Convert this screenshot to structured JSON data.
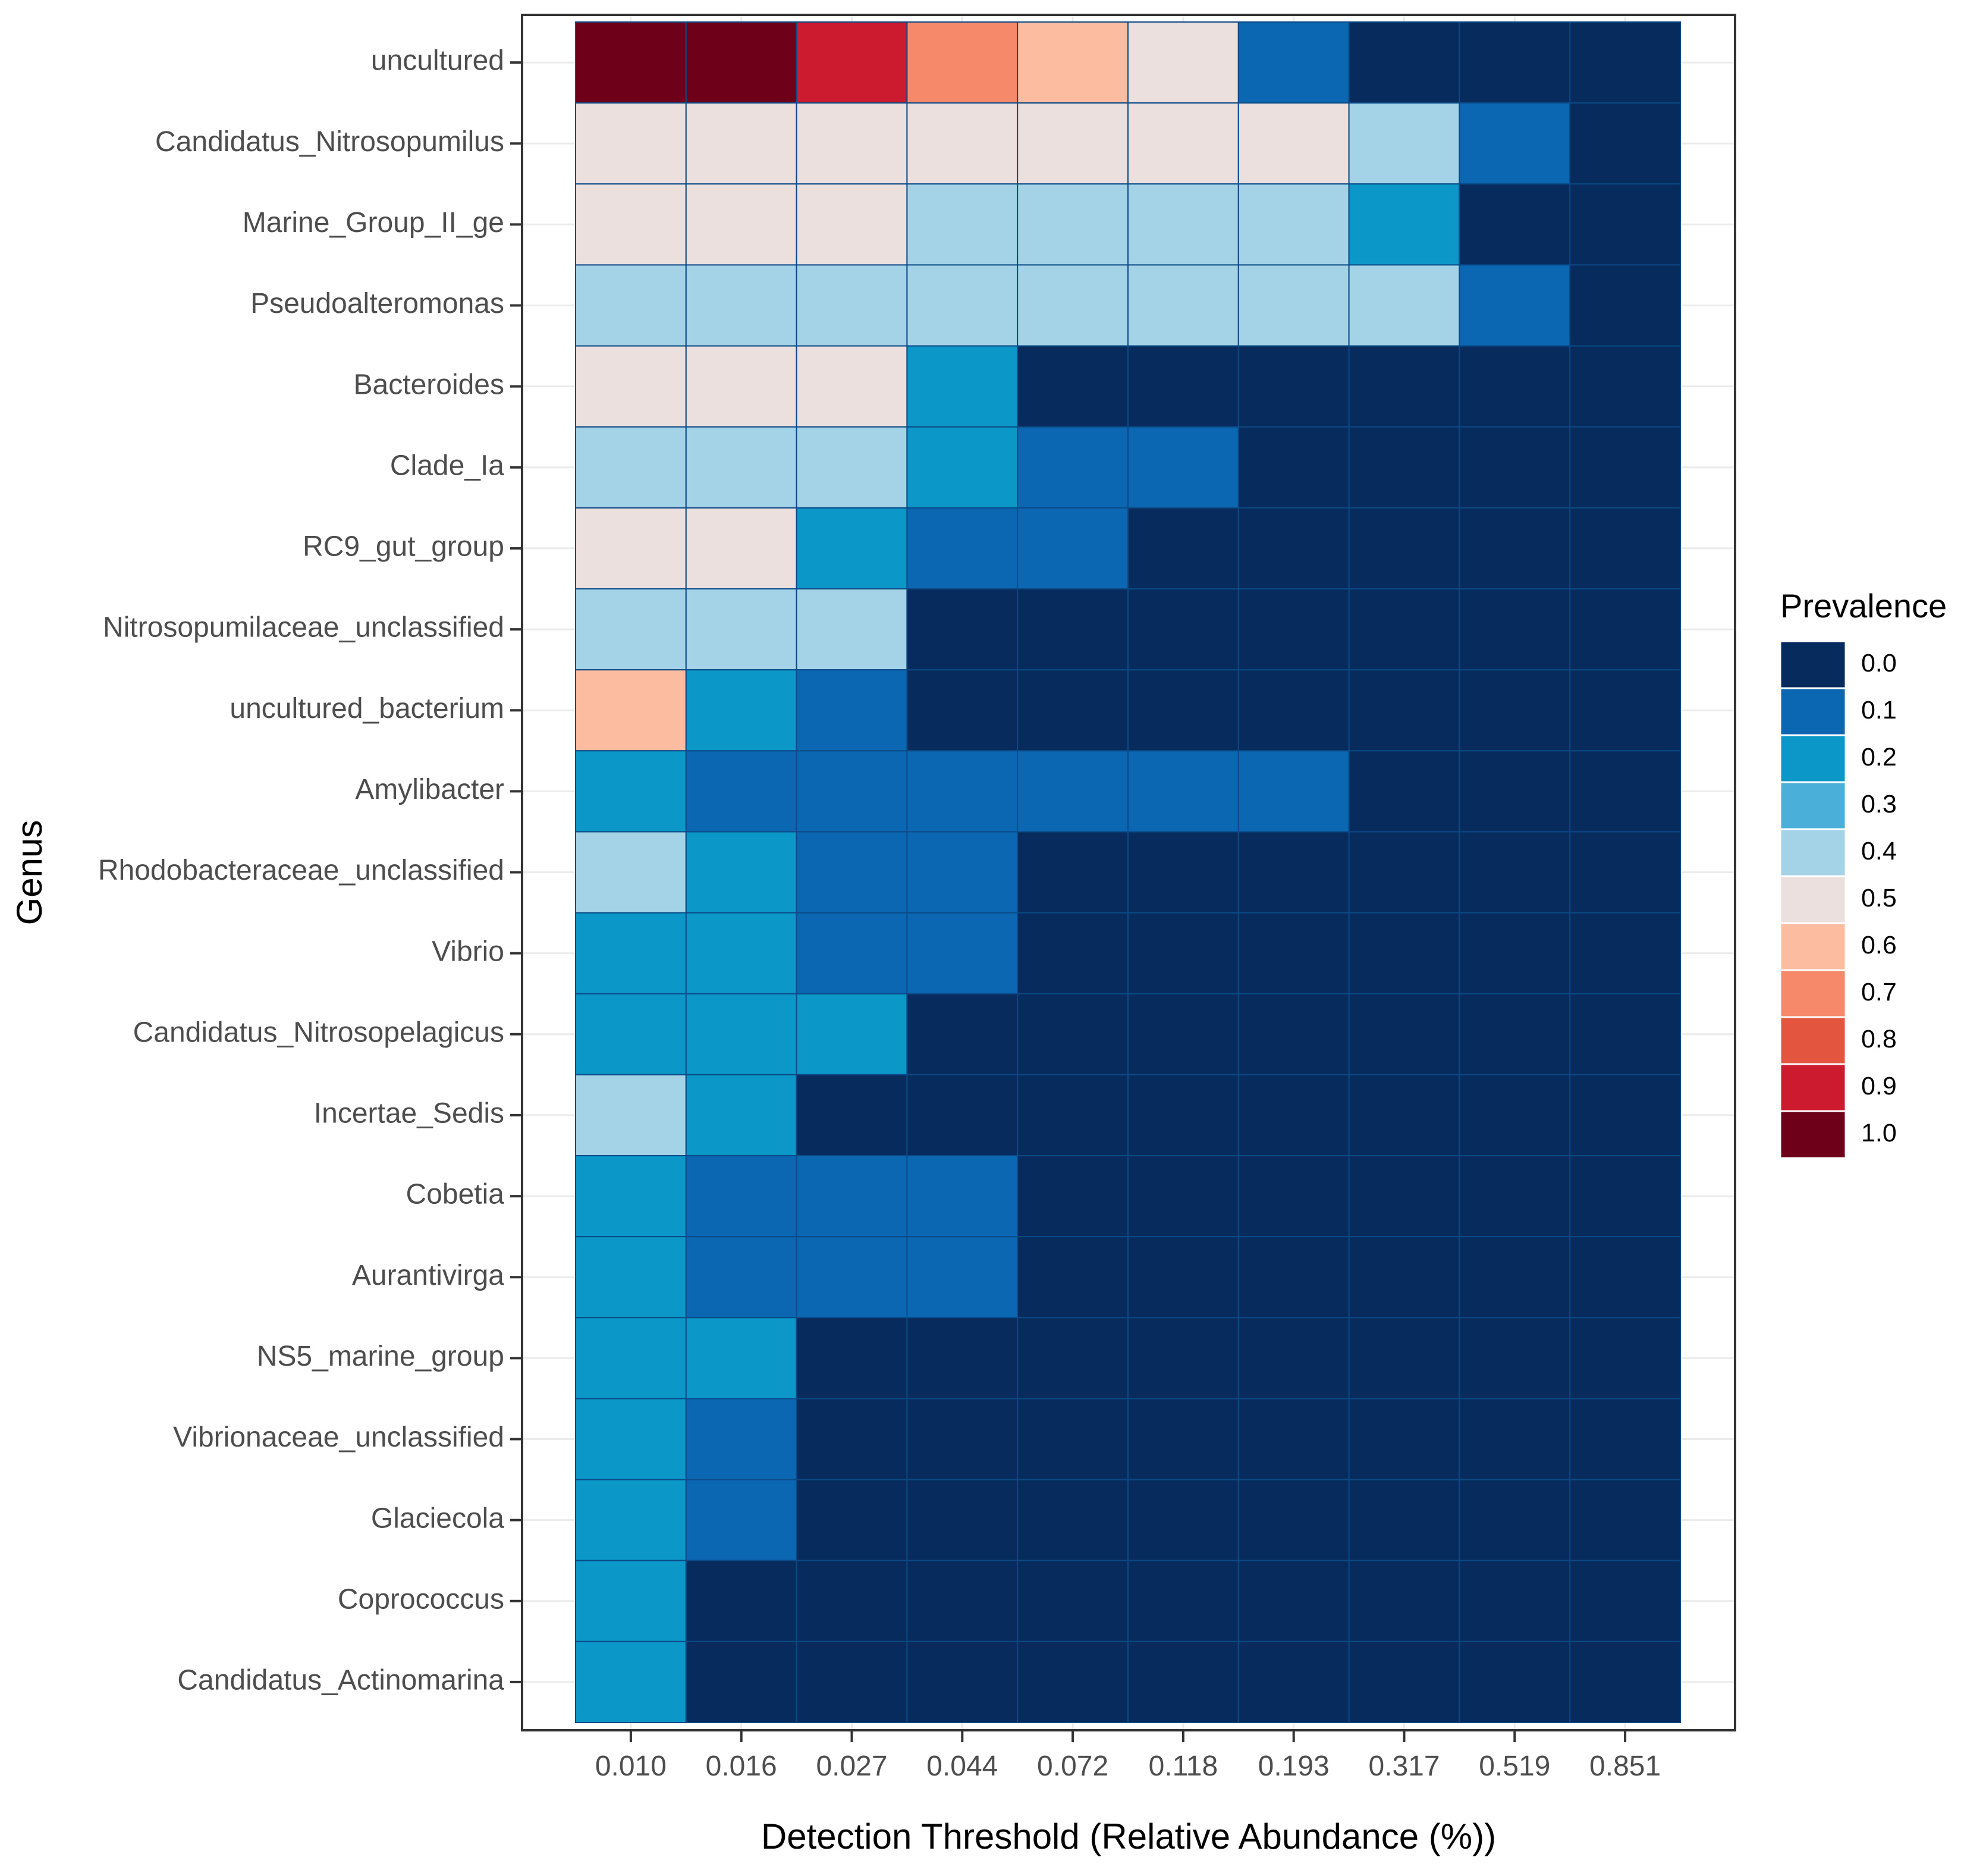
{
  "colors": {
    "background": "#ffffff",
    "panel_border": "#333333",
    "grid": "#ebebeb",
    "tick_text": "#4d4d4d",
    "axis_text": "#000000",
    "cell_border": "#0b4a86",
    "palette": {
      "0.0": "#062b5c",
      "0.1": "#0b67b2",
      "0.2": "#0b98c8",
      "0.3": "#4ab0d9",
      "0.4": "#a4d3e8",
      "0.5": "#ebe0de",
      "0.6": "#fbbca0",
      "0.7": "#f6896a",
      "0.8": "#e3553f",
      "0.9": "#cc1a2f",
      "1.0": "#6f0019"
    }
  },
  "chart_data": {
    "type": "heatmap",
    "title": "",
    "xlabel": "Detection Threshold (Relative Abundance (%))",
    "ylabel": "Genus",
    "x_categories": [
      "0.010",
      "0.016",
      "0.027",
      "0.044",
      "0.072",
      "0.118",
      "0.193",
      "0.317",
      "0.519",
      "0.851"
    ],
    "y_categories": [
      "uncultured",
      "Candidatus_Nitrosopumilus",
      "Marine_Group_II_ge",
      "Pseudoalteromonas",
      "Bacteroides",
      "Clade_Ia",
      "RC9_gut_group",
      "Nitrosopumilaceae_unclassified",
      "uncultured_bacterium",
      "Amylibacter",
      "Rhodobacteraceae_unclassified",
      "Vibrio",
      "Candidatus_Nitrosopelagicus",
      "Incertae_Sedis",
      "Cobetia",
      "Aurantivirga",
      "NS5_marine_group",
      "Vibrionaceae_unclassified",
      "Glaciecola",
      "Coprococcus",
      "Candidatus_Actinomarina"
    ],
    "values": [
      [
        1.0,
        1.0,
        0.9,
        0.7,
        0.6,
        0.5,
        0.1,
        0.0,
        0.0,
        0.0
      ],
      [
        0.5,
        0.5,
        0.5,
        0.5,
        0.5,
        0.5,
        0.5,
        0.4,
        0.1,
        0.0
      ],
      [
        0.5,
        0.5,
        0.5,
        0.4,
        0.4,
        0.4,
        0.4,
        0.2,
        0.0,
        0.0
      ],
      [
        0.4,
        0.4,
        0.4,
        0.4,
        0.4,
        0.4,
        0.4,
        0.4,
        0.1,
        0.0
      ],
      [
        0.5,
        0.5,
        0.5,
        0.2,
        0.0,
        0.0,
        0.0,
        0.0,
        0.0,
        0.0
      ],
      [
        0.4,
        0.4,
        0.4,
        0.2,
        0.1,
        0.1,
        0.0,
        0.0,
        0.0,
        0.0
      ],
      [
        0.5,
        0.5,
        0.2,
        0.1,
        0.1,
        0.0,
        0.0,
        0.0,
        0.0,
        0.0
      ],
      [
        0.4,
        0.4,
        0.4,
        0.0,
        0.0,
        0.0,
        0.0,
        0.0,
        0.0,
        0.0
      ],
      [
        0.6,
        0.2,
        0.1,
        0.0,
        0.0,
        0.0,
        0.0,
        0.0,
        0.0,
        0.0
      ],
      [
        0.2,
        0.1,
        0.1,
        0.1,
        0.1,
        0.1,
        0.1,
        0.0,
        0.0,
        0.0
      ],
      [
        0.4,
        0.2,
        0.1,
        0.1,
        0.0,
        0.0,
        0.0,
        0.0,
        0.0,
        0.0
      ],
      [
        0.2,
        0.2,
        0.1,
        0.1,
        0.0,
        0.0,
        0.0,
        0.0,
        0.0,
        0.0
      ],
      [
        0.2,
        0.2,
        0.2,
        0.0,
        0.0,
        0.0,
        0.0,
        0.0,
        0.0,
        0.0
      ],
      [
        0.4,
        0.2,
        0.0,
        0.0,
        0.0,
        0.0,
        0.0,
        0.0,
        0.0,
        0.0
      ],
      [
        0.2,
        0.1,
        0.1,
        0.1,
        0.0,
        0.0,
        0.0,
        0.0,
        0.0,
        0.0
      ],
      [
        0.2,
        0.1,
        0.1,
        0.1,
        0.0,
        0.0,
        0.0,
        0.0,
        0.0,
        0.0
      ],
      [
        0.2,
        0.2,
        0.0,
        0.0,
        0.0,
        0.0,
        0.0,
        0.0,
        0.0,
        0.0
      ],
      [
        0.2,
        0.1,
        0.0,
        0.0,
        0.0,
        0.0,
        0.0,
        0.0,
        0.0,
        0.0
      ],
      [
        0.2,
        0.1,
        0.0,
        0.0,
        0.0,
        0.0,
        0.0,
        0.0,
        0.0,
        0.0
      ],
      [
        0.2,
        0.0,
        0.0,
        0.0,
        0.0,
        0.0,
        0.0,
        0.0,
        0.0,
        0.0
      ],
      [
        0.2,
        0.0,
        0.0,
        0.0,
        0.0,
        0.0,
        0.0,
        0.0,
        0.0,
        0.0
      ]
    ],
    "legend": {
      "title": "Prevalence",
      "labels": [
        "0.0",
        "0.1",
        "0.2",
        "0.3",
        "0.4",
        "0.5",
        "0.6",
        "0.7",
        "0.8",
        "0.9",
        "1.0"
      ],
      "placement": "right"
    },
    "grid": true
  }
}
